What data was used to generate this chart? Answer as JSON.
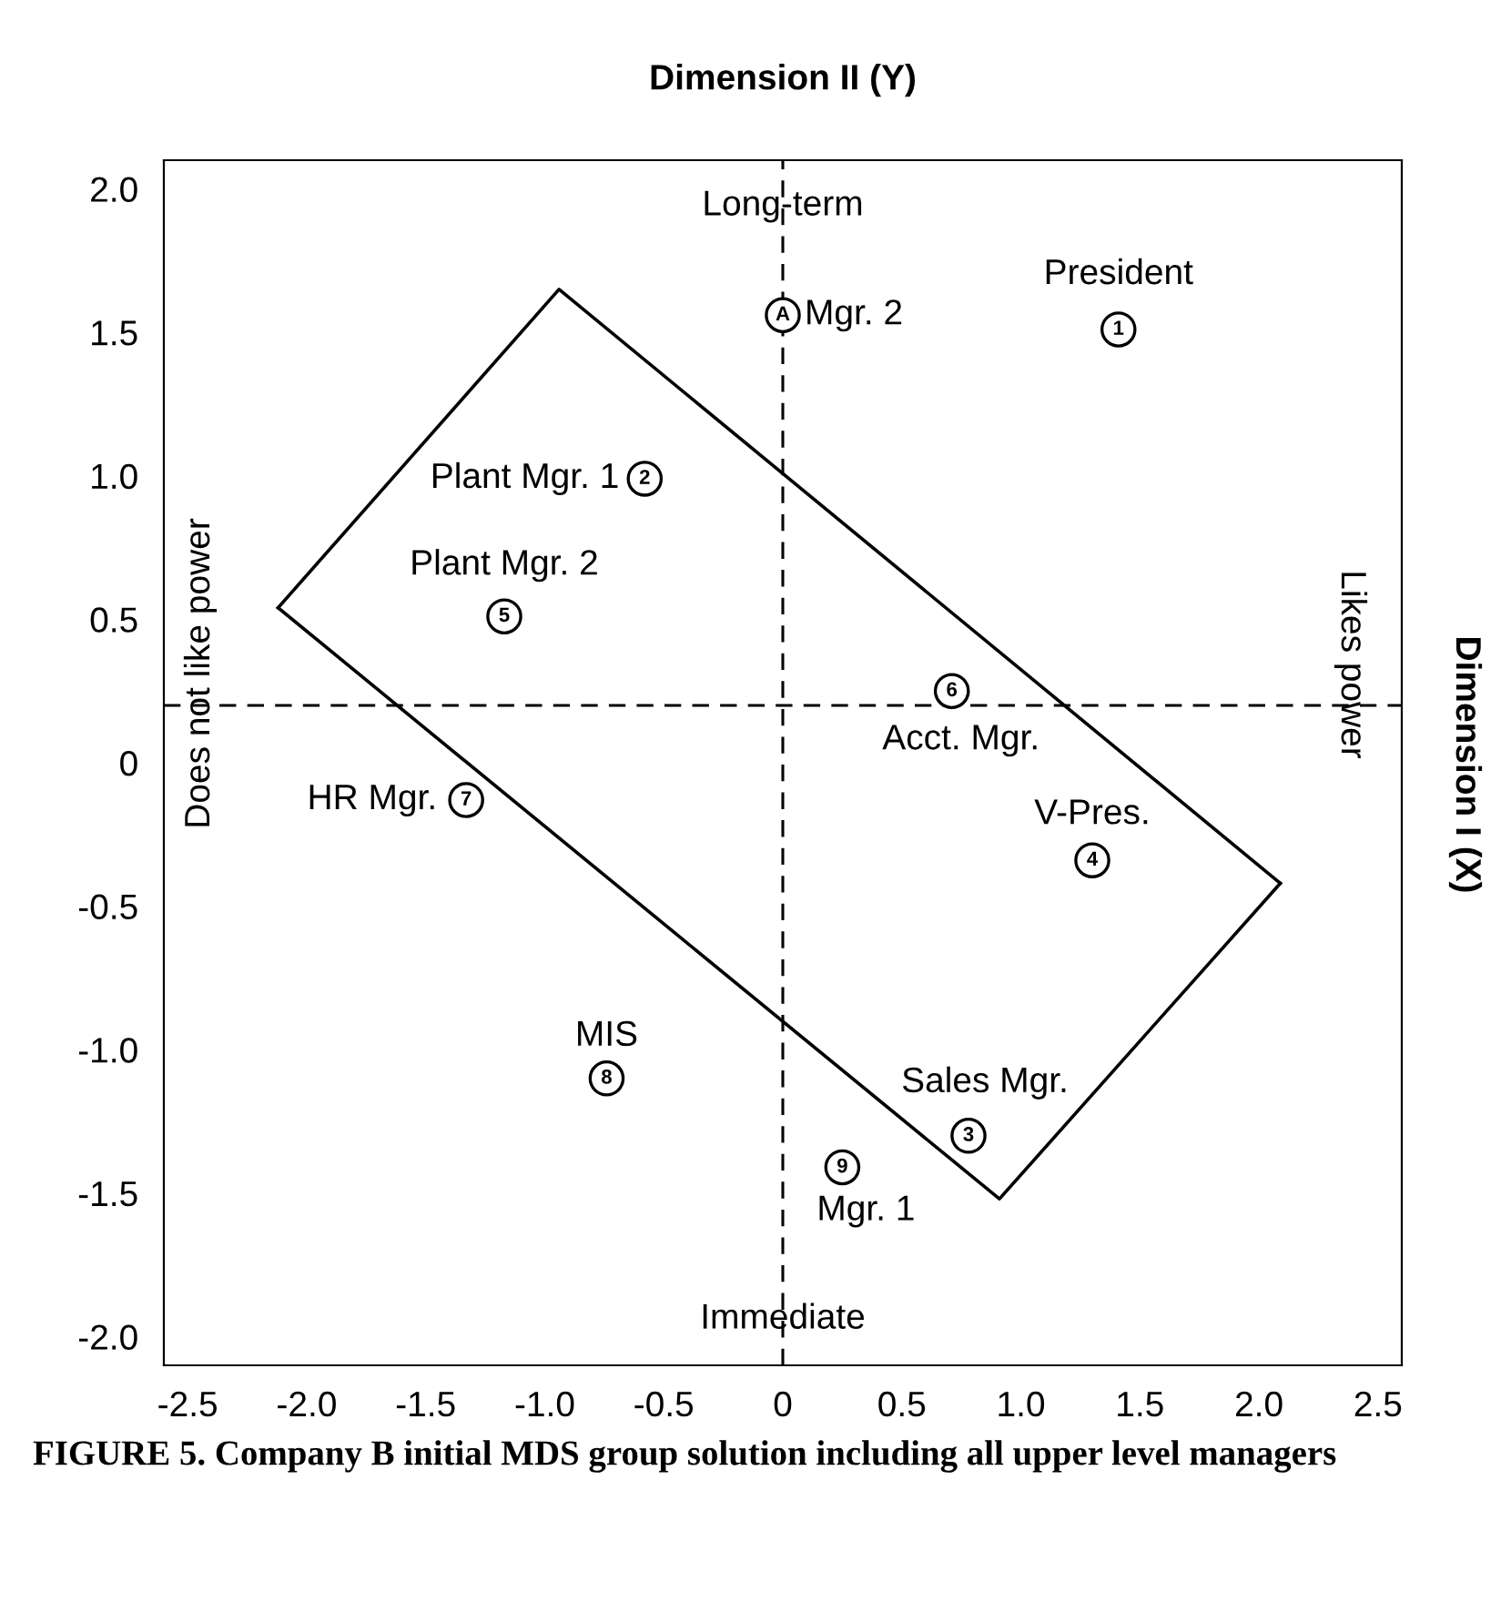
{
  "chart_data": {
    "type": "scatter",
    "title": "Dimension II (Y)",
    "xlim": [
      -2.6,
      2.6
    ],
    "ylim": [
      -2.1,
      2.1
    ],
    "xticks": [
      {
        "value": -2.5,
        "label": "-2.5"
      },
      {
        "value": -2.0,
        "label": "-2.0"
      },
      {
        "value": -1.5,
        "label": "-1.5"
      },
      {
        "value": -1.0,
        "label": "-1.0"
      },
      {
        "value": -0.5,
        "label": "-0.5"
      },
      0,
      0.5,
      {
        "value": 1.0,
        "label": "1.0"
      },
      1.5,
      {
        "value": 2.0,
        "label": "2.0"
      },
      2.5
    ],
    "yticks": [
      {
        "value": 2.0,
        "label": "2.0"
      },
      1.5,
      {
        "value": 1.0,
        "label": "1.0"
      },
      0.5,
      0,
      {
        "value": -0.5,
        "label": "-0.5"
      },
      {
        "value": -1.0,
        "label": "-1.0"
      },
      {
        "value": -1.5,
        "label": "-1.5"
      },
      {
        "value": -2.0,
        "label": "-2.0"
      }
    ],
    "grid": false,
    "series": [
      {
        "name": "Mgr. 2",
        "color": "#000000",
        "marker": "circle",
        "x": [
          0.0
        ],
        "values": [
          1.56
        ]
      },
      {
        "name": "President",
        "color": "#000000",
        "marker": "circle",
        "x": [
          1.41
        ],
        "values": [
          1.51
        ]
      },
      {
        "name": "Plant Mgr. 1",
        "color": "#000000",
        "marker": "circle",
        "x": [
          -0.58
        ],
        "values": [
          0.99
        ]
      },
      {
        "name": "Plant Mgr. 2",
        "color": "#000000",
        "marker": "circle",
        "x": [
          -1.17
        ],
        "values": [
          0.51
        ]
      },
      {
        "name": "Acct. Mgr.",
        "color": "#000000",
        "marker": "circle",
        "x": [
          0.71
        ],
        "values": [
          0.25
        ]
      },
      {
        "name": "HR Mgr.",
        "color": "#000000",
        "marker": "circle",
        "x": [
          -1.33
        ],
        "values": [
          -0.13
        ]
      },
      {
        "name": "V-Pres.",
        "color": "#000000",
        "marker": "circle",
        "x": [
          1.3
        ],
        "values": [
          -0.34
        ]
      },
      {
        "name": "MIS",
        "color": "#000000",
        "marker": "circle",
        "x": [
          -0.74
        ],
        "values": [
          -1.1
        ]
      },
      {
        "name": "Sales Mgr.",
        "color": "#000000",
        "marker": "circle",
        "x": [
          0.78
        ],
        "values": [
          -1.3
        ]
      },
      {
        "name": "Mgr. 1",
        "color": "#000000",
        "marker": "circle",
        "x": [
          0.25
        ],
        "values": [
          -1.41
        ]
      },
      {
        "type": "line",
        "color": "#000000",
        "marker": "none",
        "line_style": "solid",
        "x": [
          -2.12,
          -0.94,
          2.09
        ],
        "values": [
          0.54,
          1.65,
          -0.42
        ]
      },
      {
        "type": "line",
        "color": "#000000",
        "marker": "none",
        "line_style": "solid",
        "x": [
          -2.12,
          0.91,
          2.09
        ],
        "values": [
          0.54,
          -1.52,
          -0.42
        ]
      }
    ],
    "ref_lines": [
      {
        "axis": "x",
        "value": 0,
        "color": "#000000",
        "line_style": "dashed"
      },
      {
        "axis": "y",
        "value": 0.2,
        "color": "#000000",
        "line_style": "dashed"
      }
    ],
    "annotations": [
      {
        "text": "A",
        "x": 0.0,
        "y": 1.56
      },
      {
        "text": "1",
        "x": 1.41,
        "y": 1.51
      },
      {
        "text": "2",
        "x": -0.58,
        "y": 0.99
      },
      {
        "text": "5",
        "x": -1.17,
        "y": 0.51
      },
      {
        "text": "6",
        "x": 0.71,
        "y": 0.25
      },
      {
        "text": "7",
        "x": -1.33,
        "y": -0.13
      },
      {
        "text": "4",
        "x": 1.3,
        "y": -0.34
      },
      {
        "text": "8",
        "x": -0.74,
        "y": -1.1
      },
      {
        "text": "3",
        "x": 0.78,
        "y": -1.3
      },
      {
        "text": "9",
        "x": 0.25,
        "y": -1.41
      },
      {
        "text": "Long-term",
        "x": 0.0,
        "y": 1.94
      },
      {
        "text": "Immediate",
        "x": 0.0,
        "y": -1.94
      },
      "Does not like power",
      "Likes power",
      "Dimension I (X)",
      "FIGURE 5. Company B initial MDS group solution including all upper level managers"
    ]
  }
}
